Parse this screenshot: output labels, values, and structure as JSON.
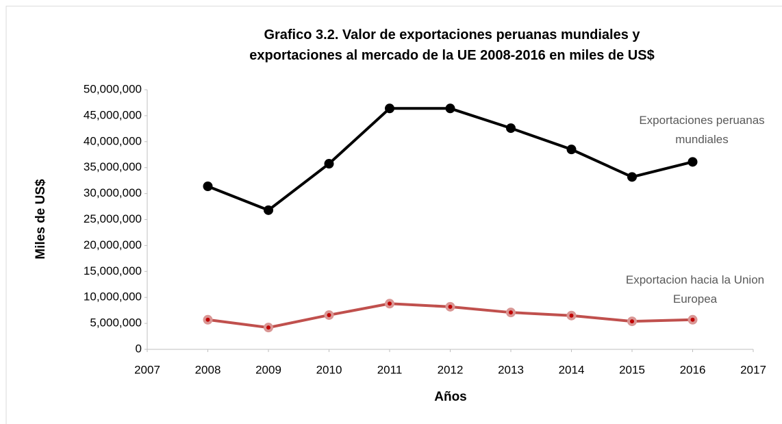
{
  "chart_data": {
    "type": "line",
    "title": "Grafico 3.2. Valor de exportaciones peruanas mundiales y exportaciones al mercado de la UE 2008-2016 en miles de US$",
    "xlabel": "Años",
    "ylabel": "Miles de US$",
    "x": [
      2008,
      2009,
      2010,
      2011,
      2012,
      2013,
      2014,
      2015,
      2016
    ],
    "series": [
      {
        "name": "Exportaciones peruanas mundiales",
        "color": "#000000",
        "values": [
          31400000,
          26800000,
          35750000,
          46400000,
          46400000,
          42600000,
          38500000,
          33200000,
          36100000
        ]
      },
      {
        "name": "Exportacion hacia la Union Europea",
        "color": "#c0504d",
        "values": [
          5700000,
          4200000,
          6600000,
          8800000,
          8200000,
          7100000,
          6500000,
          5400000,
          5700000
        ]
      }
    ],
    "xlim": [
      2007,
      2017
    ],
    "xticks": [
      2007,
      2008,
      2009,
      2010,
      2011,
      2012,
      2013,
      2014,
      2015,
      2016,
      2017
    ],
    "ylim": [
      0,
      50000000
    ],
    "yticks": [
      0,
      {
        "value": 5000000,
        "label": "5,000,000"
      },
      {
        "value": 10000000,
        "label": "10,000,000"
      },
      {
        "value": 15000000,
        "label": "15,000,000"
      },
      {
        "value": 20000000,
        "label": "20,000,000"
      },
      {
        "value": 25000000,
        "label": "25,000,000"
      },
      {
        "value": 30000000,
        "label": "30,000,000"
      },
      {
        "value": 35000000,
        "label": "35,000,000"
      },
      {
        "value": 40000000,
        "label": "40,000,000"
      },
      {
        "value": 45000000,
        "label": "45,000,000"
      },
      {
        "value": 50000000,
        "label": "50,000,000"
      }
    ],
    "grid": false
  }
}
